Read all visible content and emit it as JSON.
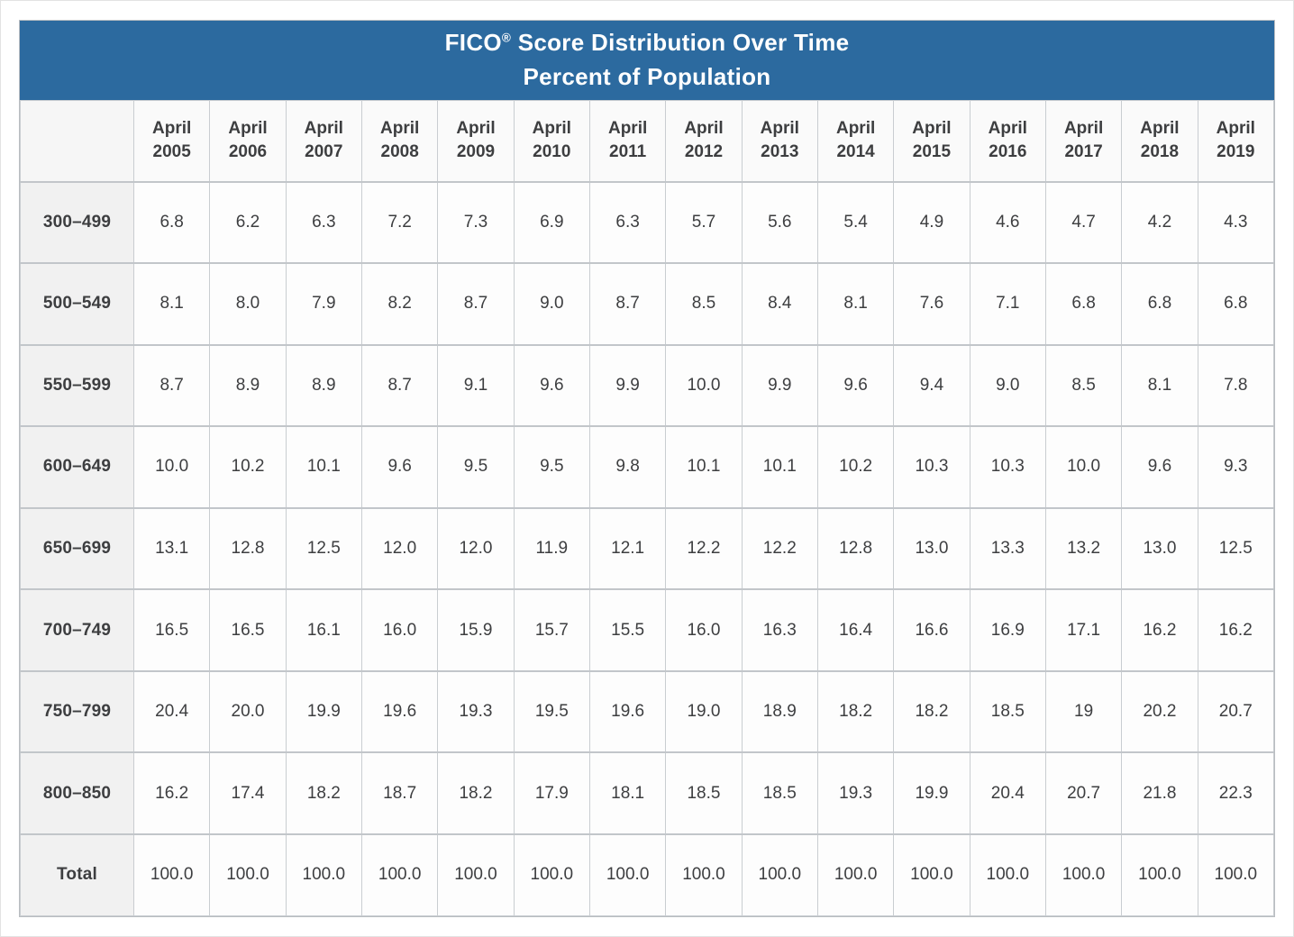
{
  "title": {
    "brand": "FICO",
    "reg": "®",
    "rest": " Score Distribution Over Time",
    "line2": "Percent of Population"
  },
  "colors": {
    "title_bar_bg": "#2c6a9f",
    "title_text": "#ffffff",
    "grid_border": "#c9cdd1",
    "label_column_bg": "#f1f1f1",
    "header_row_bg": "#fafafa",
    "cell_bg": "#fdfdfd",
    "cell_text": "#3d3e40"
  },
  "chart_data": {
    "type": "table",
    "title": "FICO® Score Distribution Over Time",
    "subtitle": "Percent of Population",
    "columns": [
      "April 2005",
      "April 2006",
      "April 2007",
      "April 2008",
      "April 2009",
      "April 2010",
      "April 2011",
      "April 2012",
      "April 2013",
      "April 2014",
      "April 2015",
      "April 2016",
      "April 2017",
      "April 2018",
      "April 2019"
    ],
    "rows": [
      {
        "label": "300–499",
        "values": [
          "6.8",
          "6.2",
          "6.3",
          "7.2",
          "7.3",
          "6.9",
          "6.3",
          "5.7",
          "5.6",
          "5.4",
          "4.9",
          "4.6",
          "4.7",
          "4.2",
          "4.3"
        ]
      },
      {
        "label": "500–549",
        "values": [
          "8.1",
          "8.0",
          "7.9",
          "8.2",
          "8.7",
          "9.0",
          "8.7",
          "8.5",
          "8.4",
          "8.1",
          "7.6",
          "7.1",
          "6.8",
          "6.8",
          "6.8"
        ]
      },
      {
        "label": "550–599",
        "values": [
          "8.7",
          "8.9",
          "8.9",
          "8.7",
          "9.1",
          "9.6",
          "9.9",
          "10.0",
          "9.9",
          "9.6",
          "9.4",
          "9.0",
          "8.5",
          "8.1",
          "7.8"
        ]
      },
      {
        "label": "600–649",
        "values": [
          "10.0",
          "10.2",
          "10.1",
          "9.6",
          "9.5",
          "9.5",
          "9.8",
          "10.1",
          "10.1",
          "10.2",
          "10.3",
          "10.3",
          "10.0",
          "9.6",
          "9.3"
        ]
      },
      {
        "label": "650–699",
        "values": [
          "13.1",
          "12.8",
          "12.5",
          "12.0",
          "12.0",
          "11.9",
          "12.1",
          "12.2",
          "12.2",
          "12.8",
          "13.0",
          "13.3",
          "13.2",
          "13.0",
          "12.5"
        ]
      },
      {
        "label": "700–749",
        "values": [
          "16.5",
          "16.5",
          "16.1",
          "16.0",
          "15.9",
          "15.7",
          "15.5",
          "16.0",
          "16.3",
          "16.4",
          "16.6",
          "16.9",
          "17.1",
          "16.2",
          "16.2"
        ]
      },
      {
        "label": "750–799",
        "values": [
          "20.4",
          "20.0",
          "19.9",
          "19.6",
          "19.3",
          "19.5",
          "19.6",
          "19.0",
          "18.9",
          "18.2",
          "18.2",
          "18.5",
          "19",
          "20.2",
          "20.7"
        ]
      },
      {
        "label": "800–850",
        "values": [
          "16.2",
          "17.4",
          "18.2",
          "18.7",
          "18.2",
          "17.9",
          "18.1",
          "18.5",
          "18.5",
          "19.3",
          "19.9",
          "20.4",
          "20.7",
          "21.8",
          "22.3"
        ]
      },
      {
        "label": "Total",
        "values": [
          "100.0",
          "100.0",
          "100.0",
          "100.0",
          "100.0",
          "100.0",
          "100.0",
          "100.0",
          "100.0",
          "100.0",
          "100.0",
          "100.0",
          "100.0",
          "100.0",
          "100.0"
        ]
      }
    ]
  }
}
